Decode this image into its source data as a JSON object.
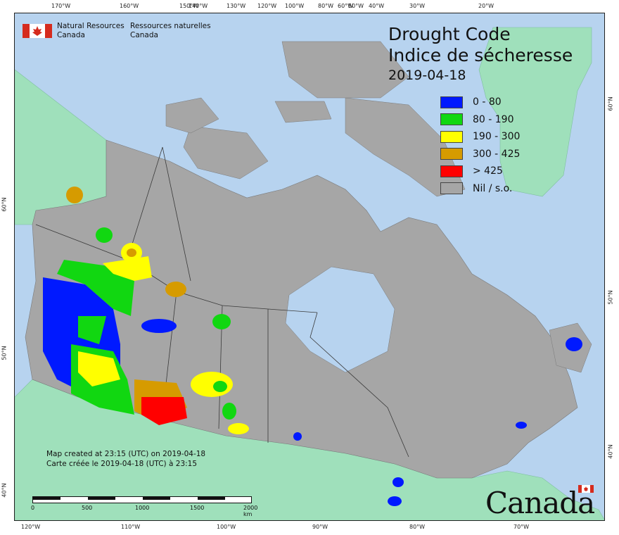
{
  "header": {
    "agency_en_line1": "Natural Resources",
    "agency_en_line2": "Canada",
    "agency_fr_line1": "Ressources naturelles",
    "agency_fr_line2": "Canada"
  },
  "map": {
    "title_en": "Drought Code",
    "title_fr": "Indice de sécheresse",
    "date": "2019-04-18",
    "legend": [
      {
        "label": "0 - 80",
        "color": "#0019ff"
      },
      {
        "label": "80 - 190",
        "color": "#11d711"
      },
      {
        "label": "190 - 300",
        "color": "#ffff00"
      },
      {
        "label": "300 - 425",
        "color": "#d69b00"
      },
      {
        "label": "> 425",
        "color": "#ff0000"
      },
      {
        "label": "Nil / s.o.",
        "color": "#a6a6a6"
      }
    ],
    "top_ticks": [
      "170°W",
      "160°W",
      "150°W",
      "140°W",
      "130°W",
      "120°W",
      "100°W",
      "80°W",
      "60°W",
      "50°W",
      "40°W",
      "30°W",
      "20°W"
    ],
    "bottom_ticks": [
      "120°W",
      "110°W",
      "100°W",
      "90°W",
      "80°W",
      "70°W"
    ],
    "left_ticks": [
      "60°N",
      "50°N",
      "40°N"
    ],
    "right_ticks": [
      "60°N",
      "50°N",
      "40°N"
    ],
    "credits_en": "Map created at 23:15 (UTC) on 2019-04-18",
    "credits_fr": "Carte créée le 2019-04-18 (UTC) à 23:15",
    "scale_labels": [
      "0",
      "500",
      "1000",
      "1500",
      "2000 km"
    ],
    "wordmark": "Canada",
    "colors": {
      "ocean": "#b7d3ef",
      "land_other": "#9fe0bb",
      "land_canada": "#a6a6a6",
      "boundary": "#3a3a3a"
    }
  }
}
